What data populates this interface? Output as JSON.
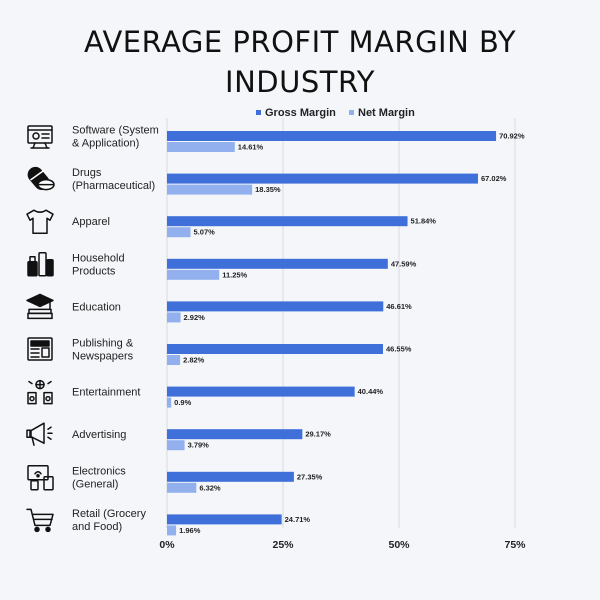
{
  "chart_data": {
    "type": "bar",
    "orientation": "horizontal",
    "title_line1": "AVERAGE PROFIT MARGIN BY",
    "title_line2": "INDUSTRY",
    "categories": [
      [
        "Software (System",
        "& Application)"
      ],
      [
        "Drugs",
        "(Pharmaceutical)"
      ],
      [
        "Apparel"
      ],
      [
        "Household",
        "Products"
      ],
      [
        "Education"
      ],
      [
        "Publishing &",
        "Newspapers"
      ],
      [
        "Entertainment"
      ],
      [
        "Advertising"
      ],
      [
        "Electronics",
        "(General)"
      ],
      [
        "Retail (Grocery",
        "and Food)"
      ]
    ],
    "icons": [
      "software-icon",
      "pills-icon",
      "tshirt-icon",
      "household-icon",
      "education-icon",
      "newspaper-icon",
      "entertainment-icon",
      "megaphone-icon",
      "electronics-icon",
      "shopping-cart-icon"
    ],
    "series": [
      {
        "name": "Gross Margin",
        "color": "#3f6fd8",
        "values": [
          70.92,
          67.02,
          51.84,
          47.59,
          46.61,
          46.55,
          40.44,
          29.17,
          27.35,
          24.71
        ],
        "labels": [
          "70.92%",
          "67.02%",
          "51.84%",
          "47.59%",
          "46.61%",
          "46.55%",
          "40.44%",
          "29.17%",
          "27.35%",
          "24.71%"
        ]
      },
      {
        "name": "Net Margin",
        "color": "#92b0ee",
        "values": [
          14.61,
          18.35,
          5.07,
          11.25,
          2.92,
          2.82,
          0.9,
          3.79,
          6.32,
          1.96
        ],
        "labels": [
          "14.61%",
          "18.35%",
          "5.07%",
          "11.25%",
          "2.92%",
          "2.82%",
          "0.9%",
          "3.79%",
          "6.32%",
          "1.96%"
        ]
      }
    ],
    "xlim": [
      0,
      75
    ],
    "xticks": [
      0,
      25,
      50,
      75
    ],
    "xtick_labels": [
      "0%",
      "25%",
      "50%",
      "75%"
    ],
    "grid": true,
    "legend_position": "top"
  }
}
